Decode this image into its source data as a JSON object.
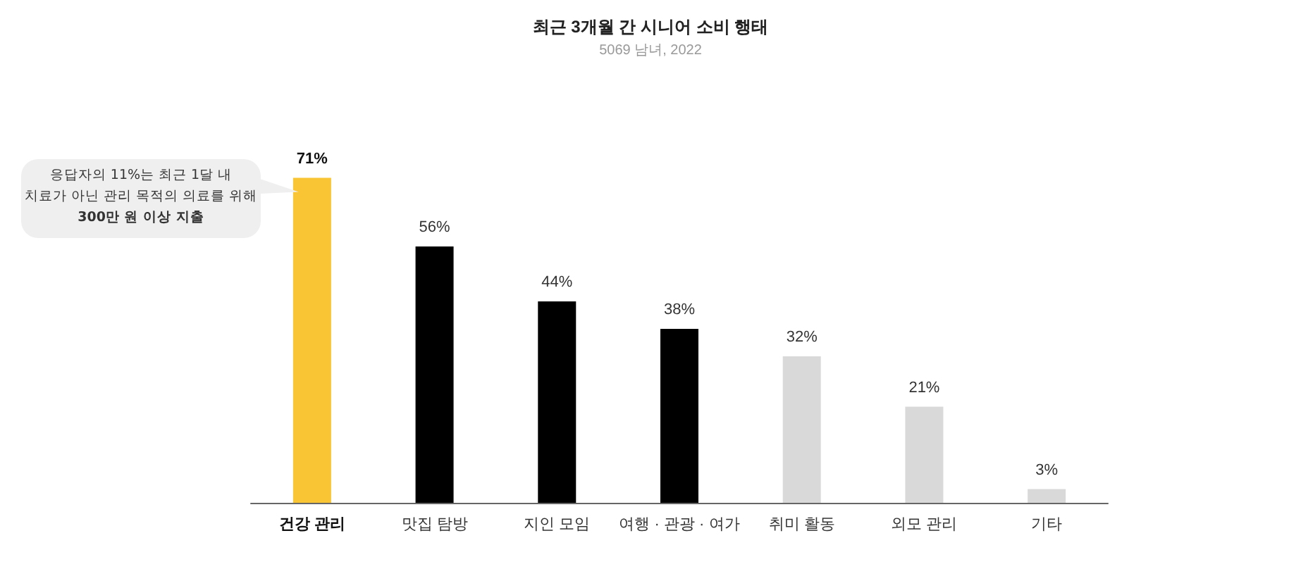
{
  "chart_data": {
    "type": "bar",
    "title": "최근 3개월 간 시니어 소비 행태",
    "subtitle": "5069 남녀, 2022",
    "categories": [
      "건강 관리",
      "맛집 탐방",
      "지인 모임",
      "여행 · 관광 · 여가",
      "취미 활동",
      "외모 관리",
      "기타"
    ],
    "values": [
      71,
      56,
      44,
      38,
      32,
      21,
      3
    ],
    "colors": [
      "#f9c535",
      "#000000",
      "#000000",
      "#000000",
      "#d9d9d9",
      "#d9d9d9",
      "#d9d9d9"
    ],
    "value_labels": [
      "71%",
      "56%",
      "44%",
      "38%",
      "32%",
      "21%",
      "3%"
    ],
    "annotations": [
      "응답자의 11%는 최근 1달 내\n치료가 아닌 관리 목적의 의료를 위해\n300만 원 이상 지출"
    ]
  }
}
